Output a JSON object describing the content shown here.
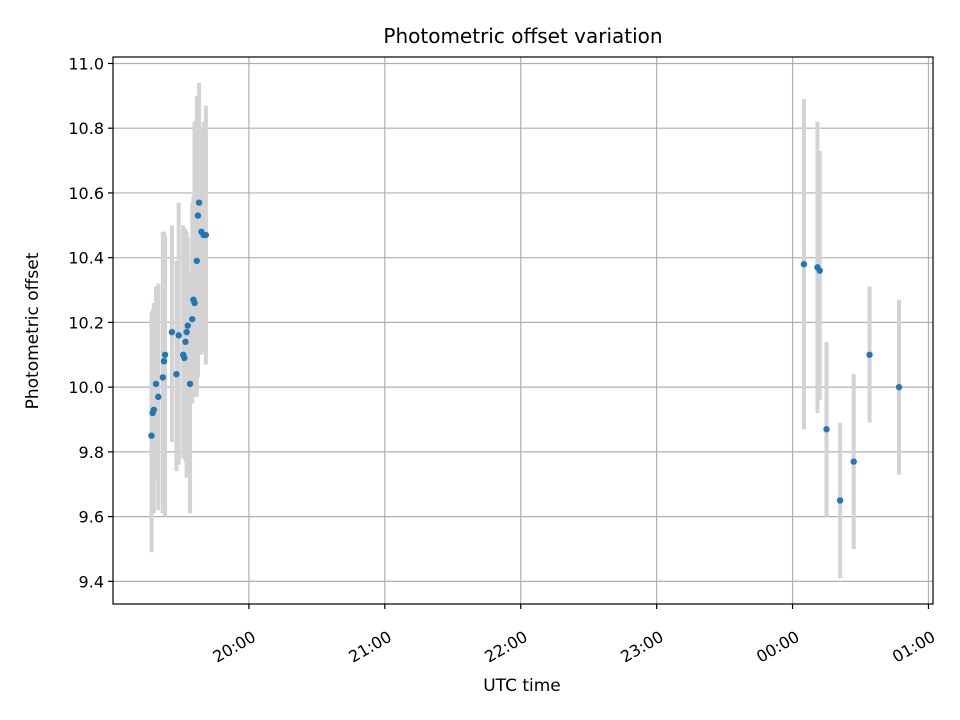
{
  "chart_data": {
    "type": "scatter",
    "title": "Photometric offset variation",
    "xlabel": "UTC time",
    "ylabel": "Photometric offset",
    "grid": true,
    "xlim": [
      "2000-01-01T19:00:00",
      "2000-01-02T01:02:00"
    ],
    "ylim": [
      9.33,
      11.02
    ],
    "x_tick_labels": [
      "20:00",
      "21:00",
      "22:00",
      "23:00",
      "00:00",
      "01:00"
    ],
    "x_ticks": [
      "2000-01-01T20:00:00",
      "2000-01-01T21:00:00",
      "2000-01-01T22:00:00",
      "2000-01-01T23:00:00",
      "2000-01-02T00:00:00",
      "2000-01-02T01:00:00"
    ],
    "y_ticks": [
      9.4,
      9.6,
      9.8,
      10.0,
      10.2,
      10.4,
      10.6,
      10.8,
      11.0
    ],
    "y_tick_labels": [
      "9.4",
      "9.6",
      "9.8",
      "10.0",
      "10.2",
      "10.4",
      "10.6",
      "10.8",
      "11.0"
    ],
    "colors": {
      "points": "#1f77b4",
      "error_bars": "#d3d3d3",
      "grid": "#b0b0b0"
    },
    "points": [
      {
        "x": "2000-01-01T19:17:00",
        "y": 9.85,
        "yerr_low": 0.36,
        "yerr_high": 0.38
      },
      {
        "x": "2000-01-01T19:17:30",
        "y": 9.92,
        "yerr_low": 0.3,
        "yerr_high": 0.32
      },
      {
        "x": "2000-01-01T19:18:00",
        "y": 9.93,
        "yerr_low": 0.32,
        "yerr_high": 0.33
      },
      {
        "x": "2000-01-01T19:19:00",
        "y": 10.01,
        "yerr_low": 0.3,
        "yerr_high": 0.3
      },
      {
        "x": "2000-01-01T19:20:00",
        "y": 9.97,
        "yerr_low": 0.35,
        "yerr_high": 0.35
      },
      {
        "x": "2000-01-01T19:22:00",
        "y": 10.03,
        "yerr_low": 0.42,
        "yerr_high": 0.45
      },
      {
        "x": "2000-01-01T19:22:30",
        "y": 10.08,
        "yerr_low": 0.4,
        "yerr_high": 0.4
      },
      {
        "x": "2000-01-01T19:23:00",
        "y": 10.1,
        "yerr_low": 0.5,
        "yerr_high": 0.37
      },
      {
        "x": "2000-01-01T19:26:00",
        "y": 10.17,
        "yerr_low": 0.34,
        "yerr_high": 0.33
      },
      {
        "x": "2000-01-01T19:28:00",
        "y": 10.04,
        "yerr_low": 0.3,
        "yerr_high": 0.35
      },
      {
        "x": "2000-01-01T19:29:00",
        "y": 10.16,
        "yerr_low": 0.4,
        "yerr_high": 0.41
      },
      {
        "x": "2000-01-01T19:31:00",
        "y": 10.1,
        "yerr_low": 0.32,
        "yerr_high": 0.4
      },
      {
        "x": "2000-01-01T19:31:30",
        "y": 10.09,
        "yerr_low": 0.31,
        "yerr_high": 0.39
      },
      {
        "x": "2000-01-01T19:32:00",
        "y": 10.14,
        "yerr_low": 0.37,
        "yerr_high": 0.35
      },
      {
        "x": "2000-01-01T19:32:30",
        "y": 10.17,
        "yerr_low": 0.45,
        "yerr_high": 0.31
      },
      {
        "x": "2000-01-01T19:33:00",
        "y": 10.19,
        "yerr_low": 0.3,
        "yerr_high": 0.27
      },
      {
        "x": "2000-01-01T19:34:00",
        "y": 10.01,
        "yerr_low": 0.4,
        "yerr_high": 0.35
      },
      {
        "x": "2000-01-01T19:35:00",
        "y": 10.21,
        "yerr_low": 0.26,
        "yerr_high": 0.36
      },
      {
        "x": "2000-01-01T19:35:30",
        "y": 10.27,
        "yerr_low": 0.3,
        "yerr_high": 0.32
      },
      {
        "x": "2000-01-01T19:36:00",
        "y": 10.26,
        "yerr_low": 0.26,
        "yerr_high": 0.56
      },
      {
        "x": "2000-01-01T19:37:00",
        "y": 10.39,
        "yerr_low": 0.42,
        "yerr_high": 0.51
      },
      {
        "x": "2000-01-01T19:37:30",
        "y": 10.53,
        "yerr_low": 0.5,
        "yerr_high": 0.37
      },
      {
        "x": "2000-01-01T19:38:00",
        "y": 10.57,
        "yerr_low": 0.36,
        "yerr_high": 0.37
      },
      {
        "x": "2000-01-01T19:39:00",
        "y": 10.48,
        "yerr_low": 0.38,
        "yerr_high": 0.32
      },
      {
        "x": "2000-01-01T19:40:00",
        "y": 10.47,
        "yerr_low": 0.36,
        "yerr_high": 0.35
      },
      {
        "x": "2000-01-01T19:41:00",
        "y": 10.47,
        "yerr_low": 0.4,
        "yerr_high": 0.4
      },
      {
        "x": "2000-01-02T00:05:00",
        "y": 10.38,
        "yerr_low": 0.51,
        "yerr_high": 0.51
      },
      {
        "x": "2000-01-02T00:11:00",
        "y": 10.37,
        "yerr_low": 0.45,
        "yerr_high": 0.45
      },
      {
        "x": "2000-01-02T00:12:00",
        "y": 10.36,
        "yerr_low": 0.4,
        "yerr_high": 0.37
      },
      {
        "x": "2000-01-02T00:15:00",
        "y": 9.87,
        "yerr_low": 0.27,
        "yerr_high": 0.27
      },
      {
        "x": "2000-01-02T00:21:00",
        "y": 9.65,
        "yerr_low": 0.24,
        "yerr_high": 0.24
      },
      {
        "x": "2000-01-02T00:27:00",
        "y": 9.77,
        "yerr_low": 0.27,
        "yerr_high": 0.27
      },
      {
        "x": "2000-01-02T00:34:00",
        "y": 10.1,
        "yerr_low": 0.21,
        "yerr_high": 0.21
      },
      {
        "x": "2000-01-02T00:47:00",
        "y": 10.0,
        "yerr_low": 0.27,
        "yerr_high": 0.27
      }
    ]
  }
}
